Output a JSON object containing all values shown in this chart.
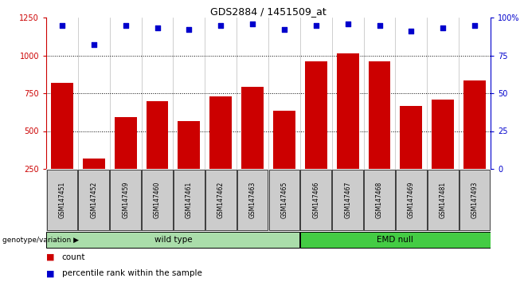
{
  "title": "GDS2884 / 1451509_at",
  "samples": [
    "GSM147451",
    "GSM147452",
    "GSM147459",
    "GSM147460",
    "GSM147461",
    "GSM147462",
    "GSM147463",
    "GSM147465",
    "GSM147466",
    "GSM147467",
    "GSM147468",
    "GSM147469",
    "GSM147481",
    "GSM147493"
  ],
  "counts": [
    820,
    320,
    590,
    700,
    565,
    730,
    790,
    635,
    960,
    1015,
    960,
    665,
    710,
    835
  ],
  "percentile_ranks": [
    95,
    82,
    95,
    93,
    92,
    95,
    96,
    92,
    95,
    96,
    95,
    91,
    93,
    95
  ],
  "bar_color": "#cc0000",
  "dot_color": "#0000cc",
  "wild_type_count": 8,
  "emd_null_count": 6,
  "ylim_left": [
    250,
    1250
  ],
  "ylim_right": [
    0,
    100
  ],
  "yticks_left": [
    250,
    500,
    750,
    1000,
    1250
  ],
  "yticks_right": [
    0,
    25,
    50,
    75,
    100
  ],
  "grid_lines": [
    500,
    750,
    1000
  ],
  "wild_type_color": "#aaddaa",
  "emd_null_color": "#44cc44",
  "label_bg_color": "#cccccc",
  "legend_count_label": "count",
  "legend_percentile_label": "percentile rank within the sample",
  "genotype_label": "genotype/variation"
}
